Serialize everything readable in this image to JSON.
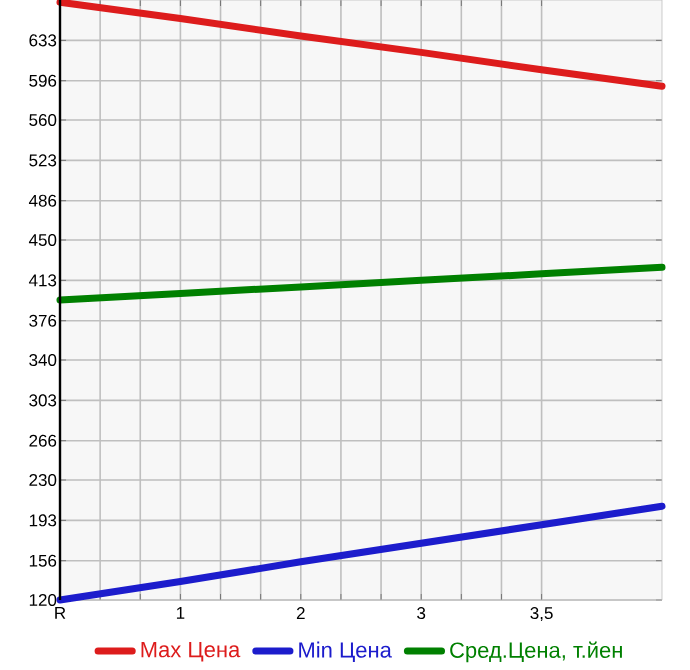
{
  "chart_data": {
    "type": "line",
    "categories": [
      "R",
      "1",
      "2",
      "3",
      "3,5",
      null
    ],
    "series": [
      {
        "name": "Max Цена",
        "color": "#dd1c1c",
        "values": [
          668,
          653,
          637,
          622,
          606,
          591
        ]
      },
      {
        "name": "Min Цена",
        "color": "#1c1ccc",
        "values": [
          120,
          137,
          155,
          172,
          189,
          206
        ]
      },
      {
        "name": "Сред.Цена, т.йен",
        "color": "#008000",
        "values": [
          395,
          401,
          407,
          413,
          419,
          425
        ]
      }
    ],
    "ylim": [
      120,
      670
    ],
    "yticks": [
      120,
      156,
      193,
      230,
      266,
      303,
      340,
      376,
      413,
      450,
      486,
      523,
      560,
      596,
      633
    ],
    "grid": true,
    "legend": "bottom",
    "marker": "none",
    "line_style": "solid"
  }
}
